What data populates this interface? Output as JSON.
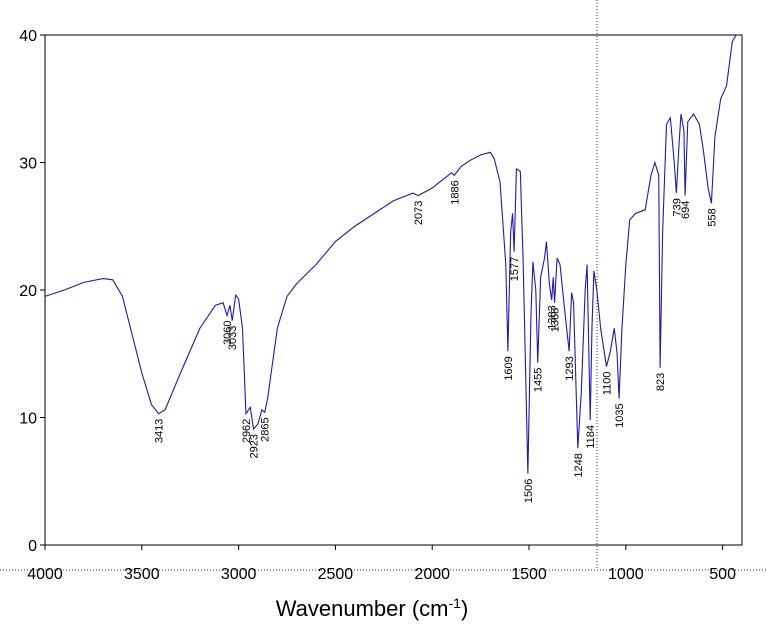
{
  "chart_data": {
    "type": "line",
    "xlabel": [
      "Wavenumber (cm",
      "-1",
      ")"
    ],
    "xlim": [
      4000,
      400
    ],
    "ylim": [
      0,
      40
    ],
    "xticks": [
      4000,
      3500,
      3000,
      2500,
      2000,
      1500,
      1000,
      500
    ],
    "yticks": [
      0,
      10,
      20,
      30,
      40
    ],
    "series": [
      {
        "color": "#1c1ca8",
        "x": [
          4000,
          3900,
          3800,
          3700,
          3650,
          3600,
          3550,
          3500,
          3450,
          3413,
          3380,
          3300,
          3200,
          3120,
          3080,
          3060,
          3045,
          3033,
          3015,
          3000,
          2980,
          2962,
          2940,
          2923,
          2900,
          2880,
          2865,
          2850,
          2800,
          2750,
          2700,
          2600,
          2500,
          2400,
          2300,
          2200,
          2100,
          2073,
          2000,
          1950,
          1900,
          1886,
          1850,
          1800,
          1750,
          1700,
          1680,
          1650,
          1620,
          1609,
          1595,
          1585,
          1577,
          1565,
          1545,
          1530,
          1506,
          1490,
          1480,
          1465,
          1455,
          1440,
          1420,
          1410,
          1395,
          1383,
          1375,
          1368,
          1355,
          1340,
          1320,
          1293,
          1280,
          1270,
          1248,
          1230,
          1210,
          1200,
          1184,
          1175,
          1165,
          1150,
          1130,
          1100,
          1080,
          1060,
          1045,
          1035,
          1020,
          1000,
          980,
          950,
          900,
          870,
          850,
          830,
          823,
          810,
          790,
          770,
          750,
          739,
          725,
          715,
          700,
          694,
          680,
          650,
          620,
          600,
          575,
          558,
          540,
          510,
          480,
          450,
          430
        ],
        "values": [
          19.5,
          20.0,
          20.6,
          20.9,
          20.8,
          19.5,
          16.5,
          13.5,
          11.0,
          10.3,
          10.6,
          13.5,
          17.0,
          18.8,
          19.0,
          18.0,
          18.8,
          17.6,
          19.6,
          19.3,
          17.0,
          10.3,
          10.8,
          9.1,
          9.5,
          10.6,
          10.4,
          11.5,
          17.0,
          19.5,
          20.5,
          22.0,
          23.8,
          25.0,
          26.0,
          27.0,
          27.6,
          27.4,
          28.0,
          28.6,
          29.2,
          29.0,
          29.7,
          30.2,
          30.6,
          30.8,
          30.3,
          28.5,
          22.0,
          15.2,
          24.5,
          26.0,
          23.0,
          29.5,
          29.3,
          22.0,
          5.6,
          18.0,
          22.2,
          20.0,
          14.3,
          21.0,
          22.5,
          23.8,
          20.5,
          19.2,
          21.0,
          19.0,
          22.5,
          22.0,
          19.0,
          15.2,
          19.8,
          19.0,
          7.6,
          12.0,
          20.0,
          22.0,
          9.8,
          17.0,
          21.5,
          20.0,
          17.0,
          14.0,
          15.2,
          17.0,
          15.0,
          11.5,
          17.0,
          22.0,
          25.5,
          26.0,
          26.3,
          29.0,
          30.0,
          29.0,
          13.9,
          24.5,
          33.0,
          33.5,
          30.0,
          27.6,
          31.5,
          33.8,
          32.5,
          27.4,
          33.2,
          33.8,
          33.0,
          31.0,
          28.0,
          26.8,
          32.0,
          35.0,
          36.0,
          39.5,
          40.0
        ]
      }
    ],
    "annotations": [
      {
        "text": "3413",
        "x": 3413,
        "y": 10.3
      },
      {
        "text": "3060",
        "x": 3060,
        "y": 18.0
      },
      {
        "text": "3033",
        "x": 3033,
        "y": 17.6
      },
      {
        "text": "2865",
        "x": 2865,
        "y": 10.4
      },
      {
        "text": "2923",
        "x": 2923,
        "y": 9.1
      },
      {
        "text": "2962",
        "x": 2962,
        "y": 10.3
      },
      {
        "text": "2073",
        "x": 2073,
        "y": 27.4
      },
      {
        "text": "1886",
        "x": 1886,
        "y": 29.0
      },
      {
        "text": "1609",
        "x": 1609,
        "y": 15.2
      },
      {
        "text": "1577",
        "x": 1577,
        "y": 23.0
      },
      {
        "text": "1506",
        "x": 1506,
        "y": 5.6
      },
      {
        "text": "1455",
        "x": 1455,
        "y": 14.3
      },
      {
        "text": "1383",
        "x": 1383,
        "y": 19.2
      },
      {
        "text": "1368",
        "x": 1368,
        "y": 19.0
      },
      {
        "text": "1293",
        "x": 1293,
        "y": 15.2
      },
      {
        "text": "1248",
        "x": 1248,
        "y": 7.6
      },
      {
        "text": "1184",
        "x": 1184,
        "y": 9.8
      },
      {
        "text": "1100",
        "x": 1100,
        "y": 14.0
      },
      {
        "text": "1035",
        "x": 1035,
        "y": 11.5
      },
      {
        "text": "823",
        "x": 823,
        "y": 13.9
      },
      {
        "text": "739",
        "x": 739,
        "y": 27.6
      },
      {
        "text": "694",
        "x": 694,
        "y": 27.4
      },
      {
        "text": "558",
        "x": 558,
        "y": 26.8
      }
    ]
  }
}
